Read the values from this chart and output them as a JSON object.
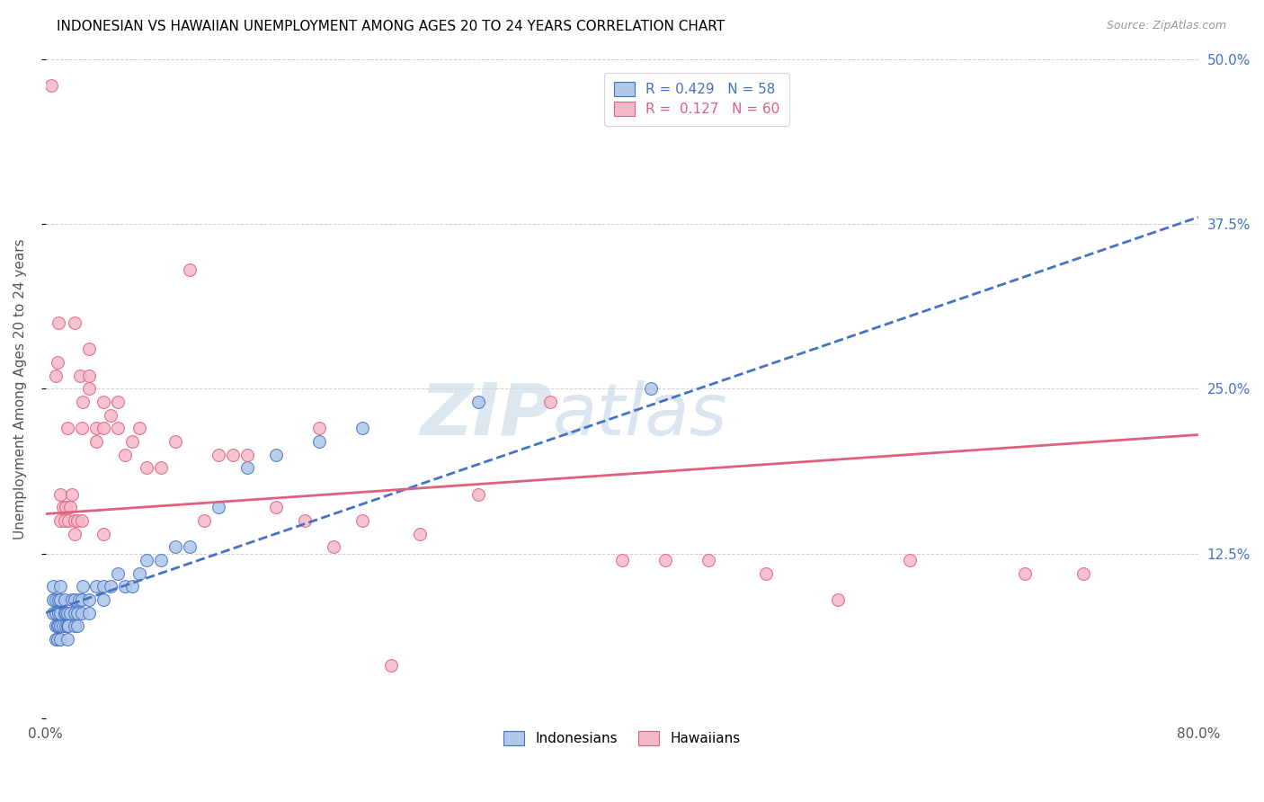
{
  "title": "INDONESIAN VS HAWAIIAN UNEMPLOYMENT AMONG AGES 20 TO 24 YEARS CORRELATION CHART",
  "source": "Source: ZipAtlas.com",
  "ylabel": "Unemployment Among Ages 20 to 24 years",
  "xlim": [
    0.0,
    0.8
  ],
  "ylim": [
    0.0,
    0.5
  ],
  "xticks": [
    0.0,
    0.1,
    0.2,
    0.3,
    0.4,
    0.5,
    0.6,
    0.7,
    0.8
  ],
  "xticklabels": [
    "0.0%",
    "",
    "",
    "",
    "",
    "",
    "",
    "",
    "80.0%"
  ],
  "ytick_positions": [
    0.0,
    0.125,
    0.25,
    0.375,
    0.5
  ],
  "ytick_labels_right": [
    "",
    "12.5%",
    "25.0%",
    "37.5%",
    "50.0%"
  ],
  "watermark_zip": "ZIP",
  "watermark_atlas": "atlas",
  "blue_color": "#aec6e8",
  "pink_color": "#f5b8c8",
  "blue_line_color": "#4472c4",
  "pink_line_color": "#e06080",
  "blue_regression": [
    0.08,
    0.38
  ],
  "pink_regression": [
    0.155,
    0.215
  ],
  "indonesians_x": [
    0.005,
    0.005,
    0.005,
    0.007,
    0.007,
    0.007,
    0.007,
    0.008,
    0.008,
    0.009,
    0.009,
    0.009,
    0.01,
    0.01,
    0.01,
    0.01,
    0.01,
    0.012,
    0.013,
    0.013,
    0.014,
    0.014,
    0.015,
    0.015,
    0.015,
    0.016,
    0.017,
    0.018,
    0.02,
    0.02,
    0.02,
    0.022,
    0.022,
    0.023,
    0.025,
    0.025,
    0.026,
    0.03,
    0.03,
    0.035,
    0.04,
    0.04,
    0.045,
    0.05,
    0.055,
    0.06,
    0.065,
    0.07,
    0.08,
    0.09,
    0.1,
    0.12,
    0.14,
    0.16,
    0.19,
    0.22,
    0.3,
    0.42
  ],
  "indonesians_y": [
    0.08,
    0.09,
    0.1,
    0.06,
    0.07,
    0.08,
    0.09,
    0.06,
    0.07,
    0.07,
    0.08,
    0.09,
    0.06,
    0.07,
    0.08,
    0.09,
    0.1,
    0.07,
    0.08,
    0.09,
    0.07,
    0.08,
    0.06,
    0.07,
    0.08,
    0.07,
    0.08,
    0.09,
    0.07,
    0.08,
    0.09,
    0.07,
    0.08,
    0.09,
    0.08,
    0.09,
    0.1,
    0.08,
    0.09,
    0.1,
    0.09,
    0.1,
    0.1,
    0.11,
    0.1,
    0.1,
    0.11,
    0.12,
    0.12,
    0.13,
    0.13,
    0.16,
    0.19,
    0.2,
    0.21,
    0.22,
    0.24,
    0.25
  ],
  "hawaiians_x": [
    0.004,
    0.007,
    0.008,
    0.009,
    0.01,
    0.01,
    0.012,
    0.013,
    0.014,
    0.015,
    0.016,
    0.017,
    0.018,
    0.02,
    0.02,
    0.02,
    0.022,
    0.024,
    0.025,
    0.025,
    0.026,
    0.03,
    0.03,
    0.03,
    0.035,
    0.035,
    0.04,
    0.04,
    0.04,
    0.045,
    0.05,
    0.05,
    0.055,
    0.06,
    0.065,
    0.07,
    0.08,
    0.09,
    0.1,
    0.11,
    0.12,
    0.13,
    0.14,
    0.16,
    0.18,
    0.19,
    0.2,
    0.22,
    0.24,
    0.26,
    0.3,
    0.35,
    0.4,
    0.43,
    0.46,
    0.5,
    0.55,
    0.6,
    0.68,
    0.72
  ],
  "hawaiians_y": [
    0.48,
    0.26,
    0.27,
    0.3,
    0.15,
    0.17,
    0.16,
    0.15,
    0.16,
    0.22,
    0.15,
    0.16,
    0.17,
    0.14,
    0.15,
    0.3,
    0.15,
    0.26,
    0.15,
    0.22,
    0.24,
    0.25,
    0.26,
    0.28,
    0.21,
    0.22,
    0.14,
    0.22,
    0.24,
    0.23,
    0.22,
    0.24,
    0.2,
    0.21,
    0.22,
    0.19,
    0.19,
    0.21,
    0.34,
    0.15,
    0.2,
    0.2,
    0.2,
    0.16,
    0.15,
    0.22,
    0.13,
    0.15,
    0.04,
    0.14,
    0.17,
    0.24,
    0.12,
    0.12,
    0.12,
    0.11,
    0.09,
    0.12,
    0.11,
    0.11
  ]
}
